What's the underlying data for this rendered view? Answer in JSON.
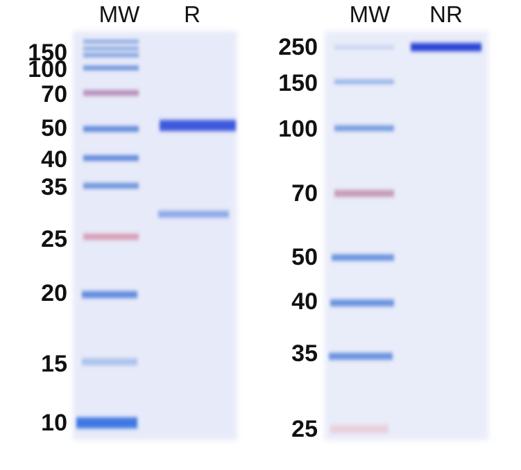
{
  "left_gel": {
    "lanes": [
      "MW",
      "R"
    ],
    "markers": [
      "150",
      "100",
      "70",
      "50",
      "40",
      "35",
      "25",
      "20",
      "15",
      "10"
    ]
  },
  "right_gel": {
    "lanes": [
      "MW",
      "NR"
    ],
    "markers": [
      "250",
      "150",
      "100",
      "70",
      "50",
      "40",
      "35",
      "25"
    ]
  }
}
